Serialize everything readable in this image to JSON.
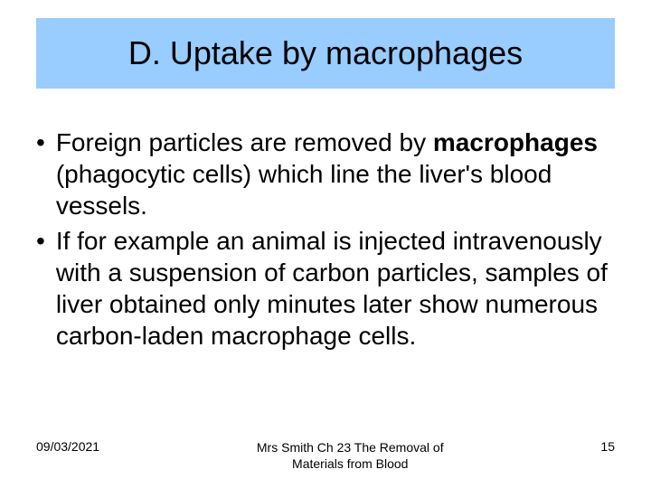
{
  "title": "D. Uptake by macrophages",
  "bullets": [
    {
      "pre": "Foreign particles are removed by ",
      "bold": "macrophages",
      "post": " (phagocytic cells) which line the liver's blood vessels."
    },
    {
      "pre": "If for example an animal is injected intravenously with a suspension of carbon particles, samples of liver obtained only minutes later show numerous carbon-laden macrophage cells.",
      "bold": "",
      "post": ""
    }
  ],
  "footer": {
    "date": "09/03/2021",
    "center_line1": "Mrs Smith Ch 23 The Removal of",
    "center_line2": "Materials from Blood",
    "page": "15"
  },
  "colors": {
    "title_bg": "#99ccff",
    "text": "#000000",
    "background": "#ffffff"
  }
}
